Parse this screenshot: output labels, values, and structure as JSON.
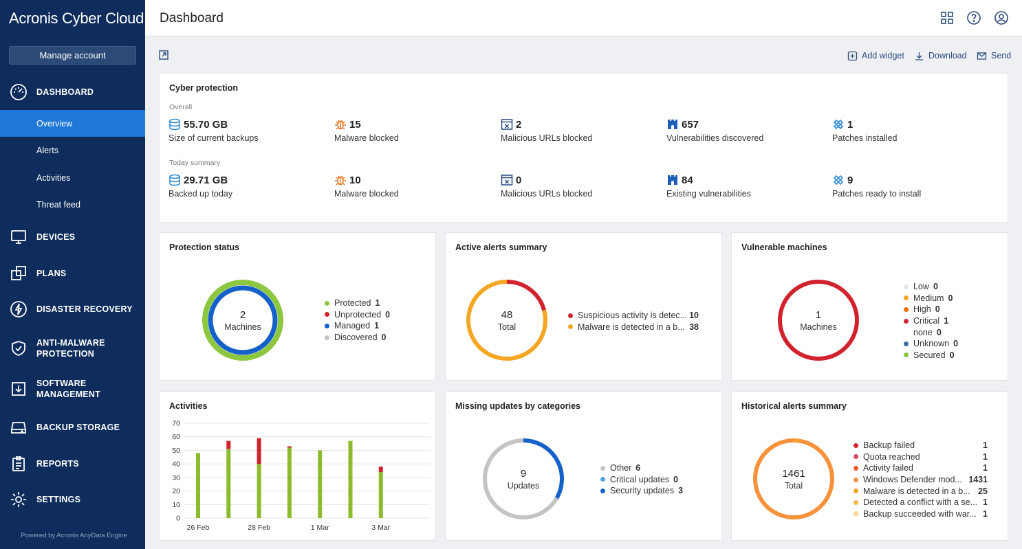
{
  "brand": "Acronis Cyber Cloud",
  "sidebar": {
    "manage_account": "Manage account",
    "sections": [
      {
        "label": "DASHBOARD"
      },
      {
        "label": "DEVICES"
      },
      {
        "label": "PLANS"
      },
      {
        "label": "DISASTER RECOVERY"
      },
      {
        "label": "ANTI-MALWARE PROTECTION"
      },
      {
        "label": "SOFTWARE MANAGEMENT"
      },
      {
        "label": "BACKUP STORAGE"
      },
      {
        "label": "REPORTS"
      },
      {
        "label": "SETTINGS"
      }
    ],
    "dashboard_items": [
      {
        "label": "Overview",
        "active": true
      },
      {
        "label": "Alerts"
      },
      {
        "label": "Activities"
      },
      {
        "label": "Threat feed"
      }
    ],
    "powered_by": "Powered by Acronis AnyData Engine"
  },
  "header": {
    "title": "Dashboard"
  },
  "toolbar": {
    "add_widget": "Add widget",
    "download": "Download",
    "send": "Send"
  },
  "cyber_protection": {
    "title": "Cyber protection",
    "overall_label": "Overall",
    "today_label": "Today summary",
    "overall": [
      {
        "value": "55.70 GB",
        "caption": "Size of current backups",
        "icon": "database-icon"
      },
      {
        "value": "15",
        "caption": "Malware blocked",
        "icon": "bug-icon"
      },
      {
        "value": "2",
        "caption": "Malicious URLs blocked",
        "icon": "blocked-url-icon"
      },
      {
        "value": "657",
        "caption": "Vulnerabilities discovered",
        "icon": "castle-icon"
      },
      {
        "value": "1",
        "caption": "Patches installed",
        "icon": "patch-icon"
      }
    ],
    "today": [
      {
        "value": "29.71 GB",
        "caption": "Backed up today",
        "icon": "database-icon"
      },
      {
        "value": "10",
        "caption": "Malware blocked",
        "icon": "bug-icon"
      },
      {
        "value": "0",
        "caption": "Malicious URLs blocked",
        "icon": "blocked-url-icon"
      },
      {
        "value": "84",
        "caption": "Existing vulnerabilities",
        "icon": "castle-icon"
      },
      {
        "value": "9",
        "caption": "Patches ready to install",
        "icon": "patch-icon"
      }
    ]
  },
  "protection_status": {
    "title": "Protection status",
    "center_value": "2",
    "center_label": "Machines",
    "legend": [
      {
        "label": "Protected",
        "value": "1",
        "color": "#8dc63f"
      },
      {
        "label": "Unprotected",
        "value": "0",
        "color": "#d0232e"
      },
      {
        "label": "Managed",
        "value": "1",
        "color": "#1560c9"
      },
      {
        "label": "Discovered",
        "value": "0",
        "color": "#c4c4c4"
      }
    ]
  },
  "active_alerts": {
    "title": "Active alerts summary",
    "center_value": "48",
    "center_label": "Total",
    "legend": [
      {
        "label": "Suspicious activity is detec...",
        "value": "10",
        "color": "#d0232e"
      },
      {
        "label": "Malware is detected in a b...",
        "value": "38",
        "color": "#f5a623"
      }
    ]
  },
  "vulnerable_machines": {
    "title": "Vulnerable machines",
    "center_value": "1",
    "center_label": "Machines",
    "legend": [
      {
        "label": "Low",
        "value": "0",
        "color": "#e6e6e6"
      },
      {
        "label": "Medium",
        "value": "0",
        "color": "#f5a623"
      },
      {
        "label": "High",
        "value": "0",
        "color": "#f07000"
      },
      {
        "label": "Critical",
        "value": "1",
        "color": "#d0232e"
      },
      {
        "label": "none",
        "value": "0",
        "color": ""
      },
      {
        "label": "Unknown",
        "value": "0",
        "color": "#3a6ea5"
      },
      {
        "label": "Secured",
        "value": "0",
        "color": "#8dc63f"
      }
    ]
  },
  "activities": {
    "title": "Activities"
  },
  "missing_updates": {
    "title": "Missing updates by categories",
    "center_value": "9",
    "center_label": "Updates",
    "legend": [
      {
        "label": "Other",
        "value": "6",
        "color": "#c4c4c4"
      },
      {
        "label": "Critical updates",
        "value": "0",
        "color": "#4da3e0"
      },
      {
        "label": "Security updates",
        "value": "3",
        "color": "#1560c9"
      }
    ]
  },
  "historical_alerts": {
    "title": "Historical alerts summary",
    "center_value": "1461",
    "center_label": "Total",
    "legend": [
      {
        "label": "Backup failed",
        "value": "1",
        "color": "#d0232e"
      },
      {
        "label": "Quota reached",
        "value": "1",
        "color": "#e0465a"
      },
      {
        "label": "Activity failed",
        "value": "1",
        "color": "#f05a28"
      },
      {
        "label": "Windows Defender mod...",
        "value": "1431",
        "color": "#f7923a"
      },
      {
        "label": "Malware is detected in a b...",
        "value": "25",
        "color": "#f5a623"
      },
      {
        "label": "Detected a conflict with a se...",
        "value": "1",
        "color": "#f7b84a"
      },
      {
        "label": "Backup succeeded with war...",
        "value": "1",
        "color": "#f9d48a"
      }
    ]
  },
  "chart_data": {
    "type": "bar",
    "title": "Activities",
    "stacked": true,
    "ylim": [
      0,
      70
    ],
    "yticks": [
      0,
      10,
      20,
      30,
      40,
      50,
      60,
      70
    ],
    "x_tick_labels": [
      "26 Feb",
      "28 Feb",
      "1 Mar",
      "3 Mar"
    ],
    "categories": [
      "26 Feb",
      "27 Feb",
      "28 Feb",
      "29 Feb",
      "1 Mar",
      "2 Mar",
      "3 Mar"
    ],
    "series": [
      {
        "color": "#8dbb2e",
        "values": [
          48,
          51,
          40,
          52,
          50,
          57,
          34
        ]
      },
      {
        "color": "#d0232e",
        "values": [
          0,
          6,
          19,
          1,
          0,
          0,
          4
        ]
      }
    ],
    "grid": true
  }
}
